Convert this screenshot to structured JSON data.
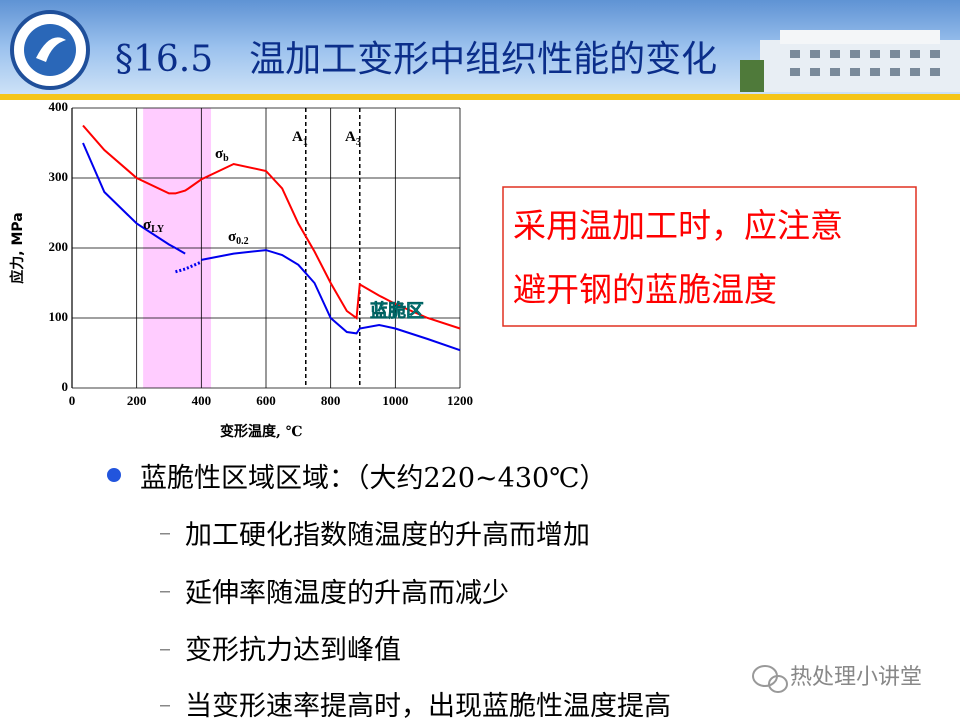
{
  "header": {
    "title": "§16.5　温加工变形中组织性能的变化"
  },
  "chart_data": {
    "type": "line",
    "x": [
      34,
      100,
      200,
      300,
      320,
      350,
      360,
      400,
      500,
      600,
      650,
      700,
      750,
      800,
      850,
      880,
      890,
      950,
      1000,
      1100,
      1200
    ],
    "series": [
      {
        "color": "#ff0000",
        "values": [
          375,
          340,
          300,
          278,
          278,
          282,
          285,
          298,
          320,
          310,
          285,
          235,
          195,
          150,
          110,
          100,
          148,
          132,
          120,
          100,
          85
        ]
      },
      {
        "color": "#0000ee",
        "values": [
          350,
          280,
          235,
          205,
          200,
          192,
          null,
          null,
          null,
          null,
          null,
          null,
          null,
          null,
          null,
          null,
          null,
          null,
          null,
          null,
          null
        ]
      },
      {
        "color": "#0000ee",
        "dash": "dotted",
        "values": [
          null,
          null,
          null,
          null,
          166,
          170,
          172,
          180,
          null,
          null,
          null,
          null,
          null,
          null,
          null,
          null,
          null,
          null,
          null,
          null,
          null
        ]
      },
      {
        "color": "#0000ee",
        "values": [
          null,
          null,
          null,
          null,
          null,
          null,
          null,
          183,
          192,
          197,
          190,
          176,
          150,
          100,
          80,
          78,
          85,
          90,
          85,
          70,
          54
        ]
      }
    ],
    "xlim": [
      0,
      1200
    ],
    "xticks": [
      0,
      200,
      400,
      600,
      800,
      1000,
      1200
    ],
    "ylim": [
      0,
      400
    ],
    "yticks": [
      0,
      100,
      200,
      300,
      400
    ],
    "grid": true,
    "band": [
      220,
      430
    ],
    "band_color": "#ffccff",
    "vlines": [
      723,
      890
    ],
    "xlabel": "变形温度, ℃",
    "ylabel": "应力, MPa",
    "annotations": [
      {
        "text": "σ",
        "sub": "b"
      },
      {
        "text": "σ",
        "sub": "0.2"
      },
      {
        "text": "σ",
        "sub": "LY"
      },
      {
        "text": "A",
        "sub": "1"
      },
      {
        "text": "A",
        "sub": "3"
      },
      {
        "text": "蓝脆区"
      }
    ]
  },
  "callout": {
    "lines": [
      "采用温加工时，应注意",
      "避开钢的蓝脆温度"
    ]
  },
  "bullets": {
    "main": "蓝脆性区域区域：（大约220~430℃）",
    "items": [
      "加工硬化指数随温度的升高而增加",
      "延伸率随温度的升高而减少",
      "变形抗力达到峰值",
      "当变形速率提高时，出现蓝脆性温度提高"
    ]
  },
  "watermark": "热处理小讲堂"
}
